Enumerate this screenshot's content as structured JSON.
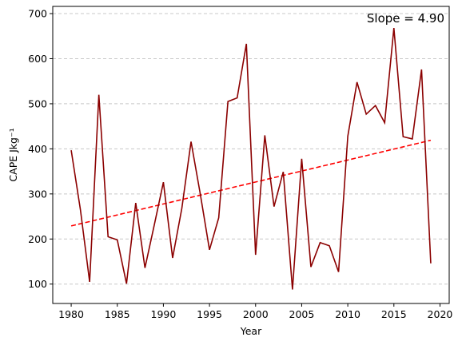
{
  "chart_data": {
    "type": "line",
    "xlabel": "Year",
    "ylabel": "CAPE Jkg⁻¹",
    "xlim": [
      1978,
      2021
    ],
    "ylim": [
      57,
      716
    ],
    "x_ticks": [
      1980,
      1985,
      1990,
      1995,
      2000,
      2005,
      2010,
      2015,
      2020
    ],
    "y_ticks": [
      100,
      200,
      300,
      400,
      500,
      600,
      700
    ],
    "grid": "horizontal dashed",
    "annotation": "Slope = 4.90",
    "colors": {
      "series": "#8b0000",
      "trend": "#ff0000",
      "grid": "#c8c8c8"
    },
    "series": [
      {
        "x": [
          1980,
          1981,
          1982,
          1983,
          1984,
          1985,
          1986,
          1987,
          1988,
          1989,
          1990,
          1991,
          1992,
          1993,
          1994,
          1995,
          1996,
          1997,
          1998,
          1999,
          2000,
          2001,
          2002,
          2003,
          2004,
          2005,
          2006,
          2007,
          2008,
          2009,
          2010,
          2011,
          2012,
          2013,
          2014,
          2015,
          2016,
          2017,
          2018,
          2019
        ],
        "values": [
          397,
          265,
          105,
          520,
          205,
          198,
          101,
          280,
          136,
          230,
          326,
          158,
          268,
          416,
          300,
          176,
          247,
          505,
          513,
          633,
          165,
          430,
          272,
          349,
          88,
          378,
          138,
          192,
          185,
          127,
          428,
          548,
          477,
          496,
          458,
          668,
          427,
          422,
          576,
          146
        ]
      },
      {
        "x": [
          1980,
          2019
        ],
        "values": [
          229,
          419
        ]
      }
    ]
  }
}
